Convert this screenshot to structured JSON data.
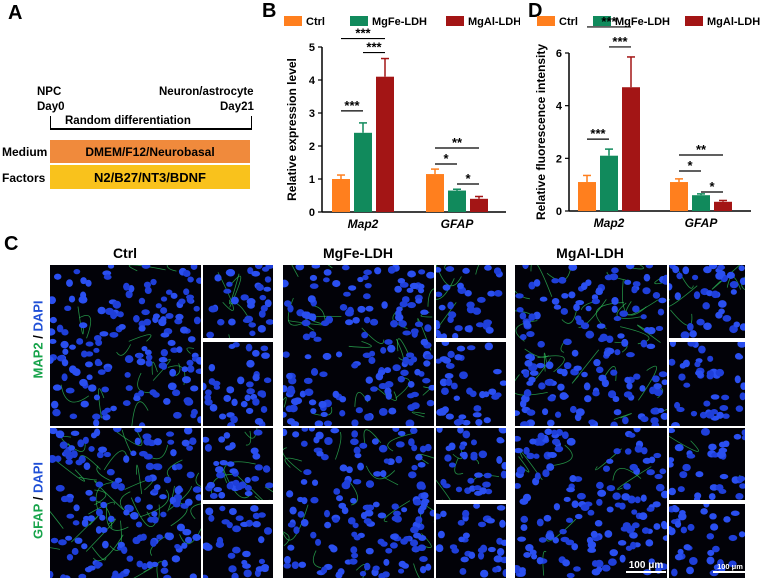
{
  "panels": {
    "A": "A",
    "B": "B",
    "C": "C",
    "D": "D"
  },
  "panelA": {
    "start_label_1": "NPC",
    "start_label_2": "Day0",
    "end_label_1": "Neuron/astrocyte",
    "end_label_2": "Day21",
    "process": "Random differentiation",
    "rows": [
      {
        "label": "Medium",
        "content": "DMEM/F12/Neurobasal",
        "color": "#f08a3c"
      },
      {
        "label": "Factors",
        "content": "N2/B27/NT3/BDNF",
        "color": "#f9c21c"
      }
    ]
  },
  "colors": {
    "ctrl": "#ff7f1e",
    "mgfe": "#118a5c",
    "mgal": "#a31515"
  },
  "chart_data": [
    {
      "panel": "B",
      "type": "bar",
      "ylabel": "Relative expression level",
      "ylim": [
        0,
        5
      ],
      "yticks": [
        "0",
        "1",
        "2",
        "3",
        "4",
        "5"
      ],
      "categories": [
        "Map2",
        "GFAP"
      ],
      "series": [
        {
          "name": "Ctrl",
          "values": [
            1.0,
            1.15
          ],
          "errors": [
            0.12,
            0.15
          ]
        },
        {
          "name": "MgFe-LDH",
          "values": [
            2.4,
            0.65
          ],
          "errors": [
            0.3,
            0.04
          ]
        },
        {
          "name": "MgAl-LDH",
          "values": [
            4.1,
            0.4
          ],
          "errors": [
            0.55,
            0.07
          ]
        }
      ],
      "significance": {
        "Map2": [
          {
            "from": 0,
            "to": 1,
            "label": "***"
          },
          {
            "from": 0,
            "to": 2,
            "label": "***"
          },
          {
            "from": 1,
            "to": 2,
            "label": "***"
          }
        ],
        "GFAP": [
          {
            "from": 0,
            "to": 1,
            "label": "*"
          },
          {
            "from": 0,
            "to": 2,
            "label": "**"
          },
          {
            "from": 1,
            "to": 2,
            "label": "*"
          }
        ]
      }
    },
    {
      "panel": "D",
      "type": "bar",
      "ylabel": "Relative fluorescence intensity",
      "ylim": [
        0,
        6
      ],
      "yticks": [
        "0",
        "2",
        "4",
        "6"
      ],
      "categories": [
        "Map2",
        "GFAP"
      ],
      "series": [
        {
          "name": "Ctrl",
          "values": [
            1.1,
            1.1
          ],
          "errors": [
            0.25,
            0.12
          ]
        },
        {
          "name": "MgFe-LDH",
          "values": [
            2.1,
            0.6
          ],
          "errors": [
            0.25,
            0.05
          ]
        },
        {
          "name": "MgAl-LDH",
          "values": [
            4.7,
            0.35
          ],
          "errors": [
            1.15,
            0.05
          ]
        }
      ],
      "significance": {
        "Map2": [
          {
            "from": 0,
            "to": 1,
            "label": "***"
          },
          {
            "from": 0,
            "to": 2,
            "label": "***"
          },
          {
            "from": 1,
            "to": 2,
            "label": "***"
          }
        ],
        "GFAP": [
          {
            "from": 0,
            "to": 1,
            "label": "*"
          },
          {
            "from": 0,
            "to": 2,
            "label": "**"
          },
          {
            "from": 1,
            "to": 2,
            "label": "*"
          }
        ]
      }
    }
  ],
  "panelC": {
    "columns": [
      "Ctrl",
      "MgFe-LDH",
      "MgAl-LDH"
    ],
    "rows": [
      {
        "marker": "MAP2",
        "sep": " / ",
        "stain": "DAPI"
      },
      {
        "marker": "GFAP",
        "sep": " / ",
        "stain": "DAPI"
      }
    ],
    "scalebar_large": "100 μm",
    "scalebar_small": "100 μm"
  }
}
